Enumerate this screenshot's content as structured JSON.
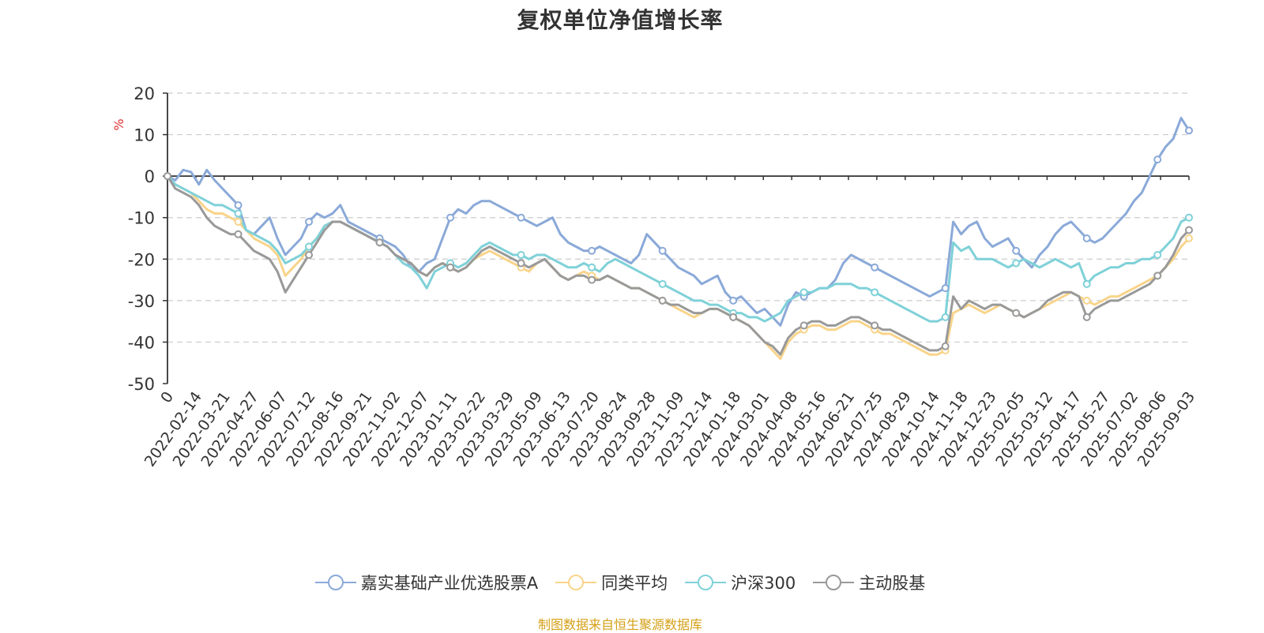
{
  "chart_data": {
    "type": "line",
    "title": "复权单位净值增长率",
    "ylabel": "%",
    "ylim": [
      -50,
      20
    ],
    "yticks": [
      20,
      10,
      0,
      -10,
      -20,
      -30,
      -40,
      -50
    ],
    "grid": true,
    "legend_position": "bottom",
    "source": "制图数据来自恒生聚源数据库",
    "x_tick_labels": [
      "0",
      "2022-02-14",
      "2022-03-21",
      "2022-04-27",
      "2022-06-07",
      "2022-07-12",
      "2022-08-16",
      "2022-09-21",
      "2022-11-02",
      "2022-12-07",
      "2023-01-11",
      "2023-02-22",
      "2023-03-29",
      "2023-05-09",
      "2023-06-13",
      "2023-07-20",
      "2023-08-24",
      "2023-09-28",
      "2023-11-09",
      "2023-12-14",
      "2024-01-18",
      "2024-03-01",
      "2024-04-08",
      "2024-05-16",
      "2024-06-21",
      "2024-07-25",
      "2024-08-29",
      "2024-10-14",
      "2024-11-18",
      "2024-12-23",
      "2025-02-05",
      "2025-03-12",
      "2025-04-17",
      "2025-05-27",
      "2025-07-02",
      "2025-08-06",
      "2025-09-03"
    ],
    "series": [
      {
        "name": "嘉实基础产业优选股票A",
        "color": "#8aa9d8",
        "values": [
          0,
          -1,
          1.5,
          1,
          -2,
          1.5,
          -1,
          -3,
          -5,
          -7,
          -13,
          -14,
          -12,
          -10,
          -15,
          -19,
          -17,
          -15,
          -11,
          -9,
          -10,
          -9,
          -7,
          -11,
          -12,
          -13,
          -14,
          -15,
          -16,
          -17,
          -19,
          -22,
          -23,
          -21,
          -20,
          -15,
          -10,
          -8,
          -9,
          -7,
          -6,
          -6,
          -7,
          -8,
          -9,
          -10,
          -11,
          -12,
          -11,
          -10,
          -14,
          -16,
          -17,
          -18,
          -18,
          -17,
          -18,
          -19,
          -20,
          -21,
          -19,
          -14,
          -16,
          -18,
          -20,
          -22,
          -23,
          -24,
          -26,
          -25,
          -24,
          -28,
          -30,
          -29,
          -31,
          -33,
          -32,
          -34,
          -36,
          -31,
          -28,
          -29,
          -28,
          -27,
          -27,
          -25,
          -21,
          -19,
          -20,
          -21,
          -22,
          -23,
          -24,
          -25,
          -26,
          -27,
          -28,
          -29,
          -28,
          -27,
          -11,
          -14,
          -12,
          -11,
          -15,
          -17,
          -16,
          -15,
          -18,
          -20,
          -22,
          -19,
          -17,
          -14,
          -12,
          -11,
          -13,
          -15,
          -16,
          -15,
          -13,
          -11,
          -9,
          -6,
          -4,
          0,
          4,
          7,
          9,
          14,
          11
        ]
      },
      {
        "name": "同类平均",
        "color": "#f9d48a",
        "values": [
          0,
          -2,
          -3,
          -4,
          -6,
          -8,
          -9,
          -9,
          -10,
          -11,
          -13,
          -15,
          -16,
          -17,
          -19,
          -24,
          -22,
          -20,
          -17,
          -15,
          -12,
          -11,
          -11,
          -12,
          -13,
          -14,
          -15,
          -16,
          -17,
          -19,
          -20,
          -21,
          -23,
          -24,
          -22,
          -21,
          -22,
          -23,
          -22,
          -20,
          -19,
          -18,
          -19,
          -20,
          -21,
          -22,
          -23,
          -21,
          -20,
          -22,
          -24,
          -25,
          -24,
          -23,
          -24,
          -25,
          -24,
          -25,
          -26,
          -27,
          -27,
          -28,
          -29,
          -30,
          -31,
          -32,
          -33,
          -34,
          -33,
          -32,
          -32,
          -33,
          -34,
          -35,
          -36,
          -38,
          -40,
          -42,
          -44,
          -40,
          -38,
          -37,
          -36,
          -36,
          -37,
          -37,
          -36,
          -35,
          -35,
          -36,
          -37,
          -38,
          -38,
          -39,
          -40,
          -41,
          -42,
          -43,
          -43,
          -42,
          -33,
          -32,
          -31,
          -32,
          -33,
          -32,
          -31,
          -32,
          -33,
          -34,
          -33,
          -32,
          -31,
          -30,
          -29,
          -28,
          -29,
          -30,
          -31,
          -30,
          -29,
          -29,
          -28,
          -27,
          -26,
          -25,
          -24,
          -22,
          -20,
          -17,
          -15
        ]
      },
      {
        "name": "沪深300",
        "color": "#7fd1d8",
        "values": [
          0,
          -2,
          -3,
          -4,
          -5,
          -6,
          -7,
          -7,
          -8,
          -9,
          -13,
          -14,
          -15,
          -16,
          -18,
          -21,
          -20,
          -19,
          -17,
          -15,
          -12,
          -11,
          -11,
          -12,
          -13,
          -14,
          -15,
          -16,
          -17,
          -19,
          -21,
          -22,
          -24,
          -27,
          -23,
          -22,
          -21,
          -22,
          -21,
          -19,
          -17,
          -16,
          -17,
          -18,
          -19,
          -19,
          -20,
          -19,
          -19,
          -20,
          -21,
          -22,
          -22,
          -21,
          -22,
          -23,
          -21,
          -20,
          -21,
          -22,
          -23,
          -24,
          -25,
          -26,
          -27,
          -28,
          -29,
          -30,
          -30,
          -31,
          -31,
          -32,
          -33,
          -33,
          -34,
          -34,
          -35,
          -34,
          -33,
          -30,
          -29,
          -28,
          -28,
          -27,
          -27,
          -26,
          -26,
          -26,
          -27,
          -27,
          -28,
          -29,
          -30,
          -31,
          -32,
          -33,
          -34,
          -35,
          -35,
          -34,
          -16,
          -18,
          -17,
          -20,
          -20,
          -20,
          -21,
          -22,
          -21,
          -20,
          -21,
          -22,
          -21,
          -20,
          -21,
          -22,
          -21,
          -26,
          -24,
          -23,
          -22,
          -22,
          -21,
          -21,
          -20,
          -20,
          -19,
          -17,
          -15,
          -11,
          -10
        ]
      },
      {
        "name": "主动股基",
        "color": "#999999",
        "values": [
          0,
          -3,
          -4,
          -5,
          -7,
          -10,
          -12,
          -13,
          -14,
          -14,
          -16,
          -18,
          -19,
          -20,
          -23,
          -28,
          -25,
          -22,
          -19,
          -16,
          -13,
          -11,
          -11,
          -12,
          -13,
          -14,
          -15,
          -16,
          -17,
          -19,
          -20,
          -21,
          -23,
          -24,
          -22,
          -21,
          -22,
          -23,
          -22,
          -20,
          -18,
          -17,
          -18,
          -19,
          -20,
          -21,
          -22,
          -21,
          -20,
          -22,
          -24,
          -25,
          -24,
          -24,
          -25,
          -25,
          -24,
          -25,
          -26,
          -27,
          -27,
          -28,
          -29,
          -30,
          -31,
          -31,
          -32,
          -33,
          -33,
          -32,
          -32,
          -33,
          -34,
          -35,
          -36,
          -38,
          -40,
          -41,
          -43,
          -39,
          -37,
          -36,
          -35,
          -35,
          -36,
          -36,
          -35,
          -34,
          -34,
          -35,
          -36,
          -37,
          -37,
          -38,
          -39,
          -40,
          -41,
          -42,
          -42,
          -41,
          -29,
          -32,
          -30,
          -31,
          -32,
          -31,
          -31,
          -32,
          -33,
          -34,
          -33,
          -32,
          -30,
          -29,
          -28,
          -28,
          -29,
          -34,
          -32,
          -31,
          -30,
          -30,
          -29,
          -28,
          -27,
          -26,
          -24,
          -22,
          -19,
          -15,
          -13
        ]
      }
    ]
  }
}
